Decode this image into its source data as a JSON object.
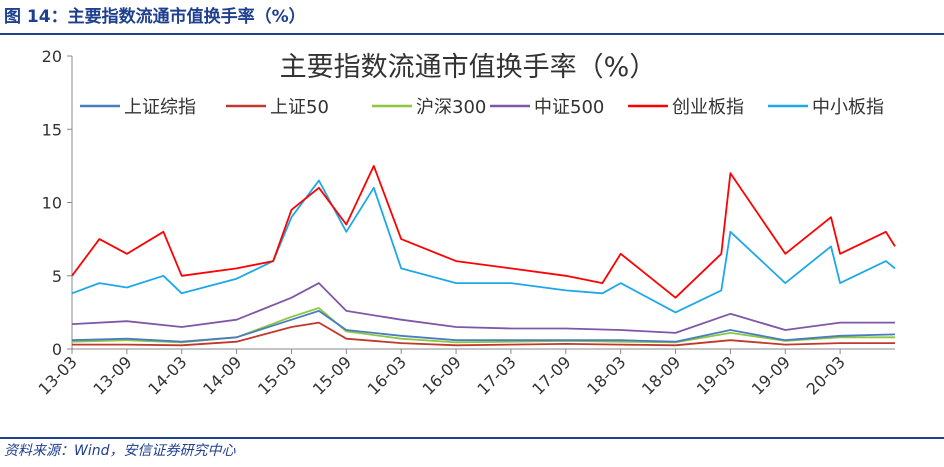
{
  "figure_label": "图 14：主要指数流通市值换手率（%）",
  "source_note": "资料来源：Wind，安信证券研究中心",
  "chart_data": {
    "type": "line",
    "title": "主要指数流通市值换手率（%）",
    "xlabel": "",
    "ylabel": "",
    "ylim": [
      0,
      20
    ],
    "y_ticks": [
      0,
      5,
      10,
      15,
      20
    ],
    "x_tick_labels": [
      "13-03",
      "13-09",
      "14-03",
      "14-09",
      "15-03",
      "15-09",
      "16-03",
      "16-09",
      "17-03",
      "17-09",
      "18-03",
      "18-09",
      "19-03",
      "19-09",
      "20-03"
    ],
    "x_range_months": [
      "2013-03",
      "2020-09"
    ],
    "grid": false,
    "legend_position": "top",
    "series": [
      {
        "name": "上证综指",
        "color": "#4a7dbf",
        "x": [
          "13-03",
          "13-09",
          "14-03",
          "14-09",
          "15-03",
          "15-06",
          "15-09",
          "16-03",
          "16-09",
          "17-03",
          "17-09",
          "18-03",
          "18-09",
          "19-03",
          "19-09",
          "20-03",
          "20-09"
        ],
        "values": [
          0.6,
          0.7,
          0.5,
          0.8,
          2.0,
          2.6,
          1.3,
          0.9,
          0.6,
          0.6,
          0.6,
          0.6,
          0.5,
          1.3,
          0.6,
          0.9,
          1.0
        ]
      },
      {
        "name": "上证50",
        "color": "#c0392b",
        "x": [
          "13-03",
          "13-09",
          "14-03",
          "14-09",
          "15-03",
          "15-06",
          "15-09",
          "16-03",
          "16-09",
          "17-03",
          "17-09",
          "18-03",
          "18-09",
          "19-03",
          "19-09",
          "20-03",
          "20-09"
        ],
        "values": [
          0.3,
          0.3,
          0.25,
          0.5,
          1.5,
          1.8,
          0.7,
          0.4,
          0.25,
          0.3,
          0.35,
          0.3,
          0.25,
          0.6,
          0.3,
          0.4,
          0.4
        ]
      },
      {
        "name": "沪深300",
        "color": "#8dc63f",
        "x": [
          "13-03",
          "13-09",
          "14-03",
          "14-09",
          "15-03",
          "15-06",
          "15-09",
          "16-03",
          "16-09",
          "17-03",
          "17-09",
          "18-03",
          "18-09",
          "19-03",
          "19-09",
          "20-03",
          "20-09"
        ],
        "values": [
          0.5,
          0.6,
          0.45,
          0.8,
          2.2,
          2.8,
          1.2,
          0.7,
          0.45,
          0.5,
          0.55,
          0.5,
          0.45,
          1.1,
          0.55,
          0.8,
          0.8
        ]
      },
      {
        "name": "中证500",
        "color": "#7e57a7",
        "x": [
          "13-03",
          "13-09",
          "14-03",
          "14-09",
          "15-03",
          "15-06",
          "15-09",
          "16-03",
          "16-09",
          "17-03",
          "17-09",
          "18-03",
          "18-09",
          "19-03",
          "19-09",
          "20-03",
          "20-09"
        ],
        "values": [
          1.7,
          1.9,
          1.5,
          2.0,
          3.5,
          4.5,
          2.6,
          2.0,
          1.5,
          1.4,
          1.4,
          1.3,
          1.1,
          2.4,
          1.3,
          1.8,
          1.8
        ]
      },
      {
        "name": "创业板指",
        "color": "#ff0000",
        "x": [
          "13-03",
          "13-06",
          "13-09",
          "14-01",
          "14-03",
          "14-09",
          "15-01",
          "15-03",
          "15-06",
          "15-09",
          "15-12",
          "16-03",
          "16-09",
          "17-03",
          "17-09",
          "18-01",
          "18-03",
          "18-09",
          "19-02",
          "19-03",
          "19-09",
          "20-02",
          "20-03",
          "20-08",
          "20-09"
        ],
        "values": [
          5.0,
          7.5,
          6.5,
          8.0,
          5.0,
          5.5,
          6.0,
          9.5,
          11.0,
          8.5,
          12.5,
          7.5,
          6.0,
          5.5,
          5.0,
          4.5,
          6.5,
          3.5,
          6.5,
          12.0,
          6.5,
          9.0,
          6.5,
          8.0,
          7.0
        ]
      },
      {
        "name": "中小板指",
        "color": "#1ea8e8",
        "x": [
          "13-03",
          "13-06",
          "13-09",
          "14-01",
          "14-03",
          "14-09",
          "15-01",
          "15-03",
          "15-06",
          "15-09",
          "15-12",
          "16-03",
          "16-09",
          "17-03",
          "17-09",
          "18-01",
          "18-03",
          "18-09",
          "19-02",
          "19-03",
          "19-09",
          "20-02",
          "20-03",
          "20-08",
          "20-09"
        ],
        "values": [
          3.8,
          4.5,
          4.2,
          5.0,
          3.8,
          4.8,
          6.0,
          9.0,
          11.5,
          8.0,
          11.0,
          5.5,
          4.5,
          4.5,
          4.0,
          3.8,
          4.5,
          2.5,
          4.0,
          8.0,
          4.5,
          7.0,
          4.5,
          6.0,
          5.5
        ]
      }
    ]
  }
}
